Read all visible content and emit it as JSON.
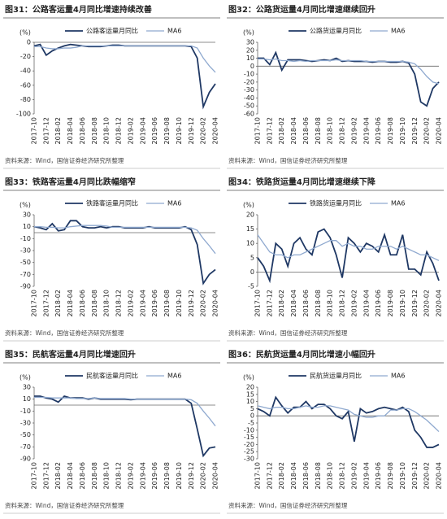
{
  "chart_data": [
    {
      "type": "line",
      "title": "图31：公路客运量4月同比增速持续改善",
      "y_label": "(%)",
      "source": "资料来源：Wind，国信证券经济研究所整理",
      "categories": [
        "2017-10",
        null,
        "2017-12",
        null,
        "2018-02",
        null,
        "2018-04",
        null,
        "2018-06",
        null,
        "2018-08",
        null,
        "2018-10",
        null,
        "2018-12",
        null,
        "2019-02",
        null,
        "2019-04",
        null,
        "2019-06",
        null,
        "2019-08",
        null,
        "2019-10",
        null,
        "2019-12",
        null,
        "2020-02",
        null,
        "2020-04"
      ],
      "ylim": [
        -100,
        0
      ],
      "yticks": [
        0,
        -20,
        -40,
        -60,
        -80,
        -100
      ],
      "series": [
        {
          "name": "公路客运量月同比",
          "color": "#1f3864",
          "values": [
            -5,
            -3,
            -18,
            -12,
            -8,
            -5,
            -3,
            -4,
            -5,
            -6,
            -6,
            -6,
            -5,
            -4,
            -4,
            -5,
            -5,
            -5,
            -5,
            -5,
            -5,
            -5,
            -5,
            -5,
            -5,
            -5,
            -6,
            -22,
            -90,
            -70,
            -58
          ]
        },
        {
          "name": "MA6",
          "color": "#8fa9cf",
          "values": [
            -6,
            -6,
            -8,
            -9,
            -9,
            -8,
            -8,
            -7,
            -5,
            -5,
            -5,
            -5,
            -5,
            -5,
            -5,
            -5,
            -5,
            -5,
            -5,
            -5,
            -5,
            -5,
            -5,
            -5,
            -5,
            -5,
            -5,
            -8,
            -22,
            -33,
            -42
          ]
        }
      ]
    },
    {
      "type": "line",
      "title": "图32：公路货运量4月同比增速继续回升",
      "y_label": "(%)",
      "source": "资料来源：Wind，国信证券经济研究所整理",
      "categories": [
        "2017-10",
        null,
        "2017-12",
        null,
        "2018-02",
        null,
        "2018-04",
        null,
        "2018-06",
        null,
        "2018-08",
        null,
        "2018-10",
        null,
        "2018-12",
        null,
        "2019-02",
        null,
        "2019-04",
        null,
        "2019-06",
        null,
        "2019-08",
        null,
        "2019-10",
        null,
        "2019-12",
        null,
        "2020-02",
        null,
        "2020-04"
      ],
      "ylim": [
        -60,
        30
      ],
      "yticks": [
        30,
        20,
        10,
        0,
        -10,
        -20,
        -30,
        -40,
        -50,
        -60
      ],
      "series": [
        {
          "name": "公路货运量月同比",
          "color": "#1f3864",
          "values": [
            10,
            10,
            2,
            17,
            -5,
            8,
            8,
            8,
            7,
            6,
            7,
            8,
            7,
            10,
            6,
            7,
            6,
            6,
            6,
            5,
            6,
            6,
            5,
            5,
            6,
            4,
            -10,
            -45,
            -50,
            -28,
            -20
          ]
        },
        {
          "name": "MA6",
          "color": "#8fa9cf",
          "values": [
            9,
            9,
            8,
            9,
            7,
            7,
            6,
            7,
            6,
            7,
            7,
            7,
            7,
            8,
            7,
            7,
            7,
            7,
            6,
            6,
            6,
            6,
            6,
            6,
            6,
            5,
            3,
            -4,
            -13,
            -20,
            -22
          ]
        }
      ]
    },
    {
      "type": "line",
      "title": "图33：铁路客运量4月同比跌幅缩窄",
      "y_label": "(%)",
      "source": "资料来源：Wind，国信证券经济研究所整理",
      "categories": [
        "2017-10",
        null,
        "2017-12",
        null,
        "2018-02",
        null,
        "2018-04",
        null,
        "2018-06",
        null,
        "2018-08",
        null,
        "2018-10",
        null,
        "2018-12",
        null,
        "2019-02",
        null,
        "2019-04",
        null,
        "2019-06",
        null,
        "2019-08",
        null,
        "2019-10",
        null,
        "2019-12",
        null,
        "2020-02",
        null,
        "2020-04"
      ],
      "ylim": [
        -90,
        30
      ],
      "yticks": [
        30,
        10,
        -10,
        -30,
        -50,
        -70,
        -90
      ],
      "series": [
        {
          "name": "铁路客运量月同比",
          "color": "#1f3864",
          "values": [
            10,
            8,
            5,
            15,
            3,
            5,
            20,
            20,
            10,
            8,
            8,
            10,
            8,
            10,
            10,
            8,
            8,
            8,
            8,
            10,
            8,
            8,
            8,
            8,
            8,
            10,
            5,
            -20,
            -85,
            -70,
            -62
          ]
        },
        {
          "name": "MA6",
          "color": "#8fa9cf",
          "values": [
            10,
            10,
            9,
            9,
            8,
            8,
            10,
            11,
            12,
            12,
            12,
            12,
            11,
            9,
            9,
            9,
            9,
            9,
            9,
            9,
            9,
            9,
            9,
            9,
            9,
            9,
            8,
            4,
            -10,
            -22,
            -35
          ]
        }
      ]
    },
    {
      "type": "line",
      "title": "图34：铁路货运量4月同比增速继续下降",
      "y_label": "(%)",
      "source": "资料来源：Wind，国信证券经济研究所整理",
      "categories": [
        "2017-10",
        null,
        "2017-12",
        null,
        "2018-02",
        null,
        "2018-04",
        null,
        "2018-06",
        null,
        "2018-08",
        null,
        "2018-10",
        null,
        "2018-12",
        null,
        "2019-02",
        null,
        "2019-04",
        null,
        "2019-06",
        null,
        "2019-08",
        null,
        "2019-10",
        null,
        "2019-12",
        null,
        "2020-02",
        null,
        "2020-04"
      ],
      "ylim": [
        -5,
        20
      ],
      "yticks": [
        20,
        15,
        10,
        5,
        0,
        -5
      ],
      "series": [
        {
          "name": "铁路货运量月同比",
          "color": "#1f3864",
          "values": [
            5,
            2,
            -3,
            10,
            8,
            2,
            10,
            12,
            8,
            6,
            14,
            15,
            12,
            6,
            -2,
            12,
            10,
            7,
            10,
            9,
            7,
            13,
            6,
            6,
            13,
            1,
            1,
            -1,
            7,
            3,
            -3
          ]
        },
        {
          "name": "MA6",
          "color": "#8fa9cf",
          "values": [
            13,
            10,
            7,
            6,
            6,
            5,
            6,
            6,
            7,
            8,
            9,
            10,
            11,
            11,
            9,
            10,
            9,
            9,
            8,
            8,
            9,
            9,
            9,
            8,
            9,
            8,
            7,
            6,
            6,
            5,
            4
          ]
        }
      ]
    },
    {
      "type": "line",
      "title": "图35：民航客运量4月同比增速回升",
      "y_label": "(%)",
      "source": "资料来源：Wind，国信证券经济研究所整理",
      "categories": [
        "2017-10",
        null,
        "2017-12",
        null,
        "2018-02",
        null,
        "2018-04",
        null,
        "2018-06",
        null,
        "2018-08",
        null,
        "2018-10",
        null,
        "2018-12",
        null,
        "2019-02",
        null,
        "2019-04",
        null,
        "2019-06",
        null,
        "2019-08",
        null,
        "2019-10",
        null,
        "2019-12",
        null,
        "2020-02",
        null,
        "2020-04"
      ],
      "ylim": [
        -90,
        30
      ],
      "yticks": [
        30,
        10,
        -10,
        -30,
        -50,
        -70,
        -90
      ],
      "series": [
        {
          "name": "民航客运量月同比",
          "color": "#1f3864",
          "values": [
            15,
            15,
            12,
            10,
            5,
            15,
            12,
            12,
            12,
            10,
            12,
            10,
            10,
            10,
            10,
            10,
            9,
            10,
            10,
            10,
            10,
            10,
            10,
            10,
            10,
            10,
            3,
            -40,
            -85,
            -72,
            -70
          ]
        },
        {
          "name": "MA6",
          "color": "#8fa9cf",
          "values": [
            13,
            13,
            13,
            12,
            12,
            12,
            12,
            11,
            11,
            11,
            12,
            11,
            11,
            11,
            11,
            11,
            10,
            10,
            10,
            10,
            10,
            10,
            10,
            10,
            10,
            10,
            9,
            3,
            -10,
            -22,
            -35
          ]
        }
      ]
    },
    {
      "type": "line",
      "title": "图36：民航货运量4月同比增速小幅回升",
      "y_label": "(%)",
      "source": "资料来源：Wind，国信证券经济研究所整理",
      "categories": [
        "2017-10",
        null,
        "2017-12",
        null,
        "2018-02",
        null,
        "2018-04",
        null,
        "2018-06",
        null,
        "2018-08",
        null,
        "2018-10",
        null,
        "2018-12",
        null,
        "2019-02",
        null,
        "2019-04",
        null,
        "2019-06",
        null,
        "2019-08",
        null,
        "2019-10",
        null,
        "2019-12",
        null,
        "2020-02",
        null,
        "2020-04"
      ],
      "ylim": [
        -30,
        20
      ],
      "yticks": [
        20,
        15,
        10,
        5,
        0,
        -5,
        -10,
        -15,
        -20,
        -25,
        -30
      ],
      "series": [
        {
          "name": "民航货运量月同比",
          "color": "#1f3864",
          "values": [
            5,
            3,
            0,
            13,
            7,
            2,
            6,
            6,
            10,
            5,
            8,
            8,
            5,
            0,
            -2,
            3,
            -18,
            5,
            2,
            3,
            5,
            6,
            5,
            4,
            6,
            3,
            -10,
            -15,
            -22,
            -22,
            -20
          ]
        },
        {
          "name": "MA6",
          "color": "#8fa9cf",
          "values": [
            7,
            6,
            5,
            6,
            6,
            5,
            5,
            6,
            7,
            6,
            6,
            7,
            7,
            6,
            5,
            4,
            1,
            0,
            -1,
            -1,
            0,
            0,
            4,
            4,
            5,
            5,
            3,
            0,
            -3,
            -7,
            -11
          ]
        }
      ]
    }
  ]
}
